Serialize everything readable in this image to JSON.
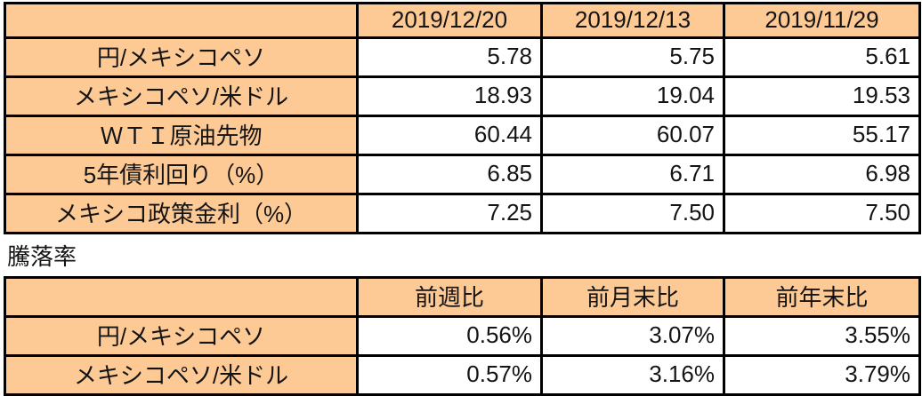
{
  "colors": {
    "cell_fill": "#fdc994",
    "border": "#000000",
    "text": "#141414",
    "background": "#ffffff"
  },
  "section_label": "騰落率",
  "rates_table": {
    "columns": [
      "",
      "2019/12/20",
      "2019/12/13",
      "2019/11/29"
    ],
    "rows": [
      {
        "label": "円/メキシコペソ",
        "values": [
          "5.78",
          "5.75",
          "5.61"
        ]
      },
      {
        "label": "メキシコペソ/米ドル",
        "values": [
          "18.93",
          "19.04",
          "19.53"
        ]
      },
      {
        "label": "ＷＴＩ原油先物",
        "values": [
          "60.44",
          "60.07",
          "55.17"
        ]
      },
      {
        "label": "5年債利回り（%）",
        "values": [
          "6.85",
          "6.71",
          "6.98"
        ]
      },
      {
        "label": "メキシコ政策金利（%）",
        "values": [
          "7.25",
          "7.50",
          "7.50"
        ]
      }
    ]
  },
  "change_table": {
    "columns": [
      "",
      "前週比",
      "前月末比",
      "前年末比"
    ],
    "rows": [
      {
        "label": "円/メキシコペソ",
        "values": [
          "0.56%",
          "3.07%",
          "3.55%"
        ]
      },
      {
        "label": "メキシコペソ/米ドル",
        "values": [
          "0.57%",
          "3.16%",
          "3.79%"
        ]
      }
    ]
  },
  "chart_data": {
    "type": "table",
    "tables": [
      {
        "title": "",
        "columns": [
          "",
          "2019/12/20",
          "2019/12/13",
          "2019/11/29"
        ],
        "rows": [
          [
            "円/メキシコペソ",
            5.78,
            5.75,
            5.61
          ],
          [
            "メキシコペソ/米ドル",
            18.93,
            19.04,
            19.53
          ],
          [
            "ＷＴＩ原油先物",
            60.44,
            60.07,
            55.17
          ],
          [
            "5年債利回り（%）",
            6.85,
            6.71,
            6.98
          ],
          [
            "メキシコ政策金利（%）",
            7.25,
            7.5,
            7.5
          ]
        ]
      },
      {
        "title": "騰落率",
        "columns": [
          "",
          "前週比",
          "前月末比",
          "前年末比"
        ],
        "rows": [
          [
            "円/メキシコペソ",
            "0.56%",
            "3.07%",
            "3.55%"
          ],
          [
            "メキシコペソ/米ドル",
            "0.57%",
            "3.16%",
            "3.79%"
          ]
        ]
      }
    ]
  }
}
